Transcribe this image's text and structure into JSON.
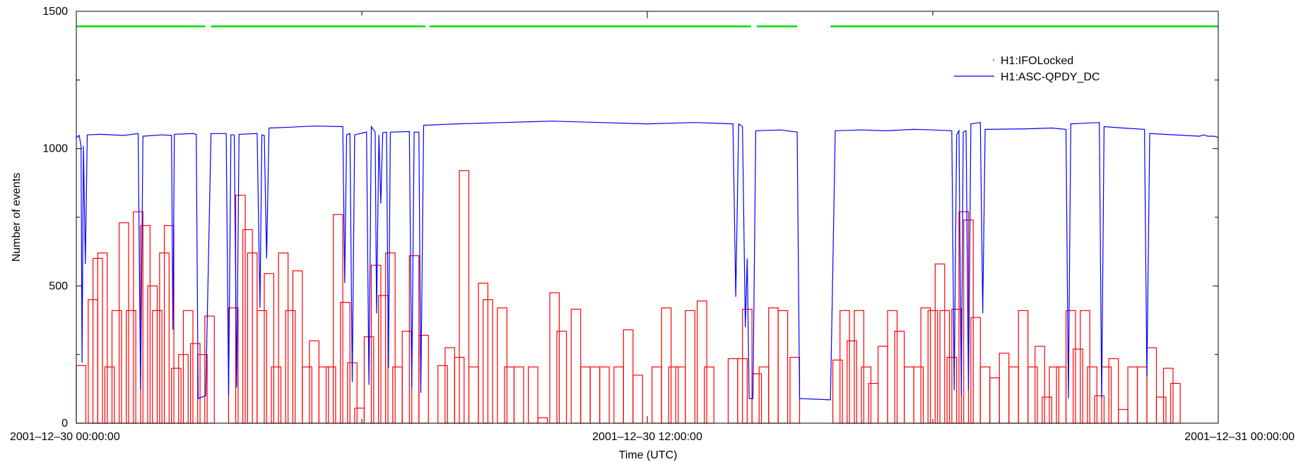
{
  "chart_data": {
    "type": "line",
    "title": "",
    "xlabel": "Time (UTC)",
    "ylabel": "Number of events",
    "x_unit": "hours since 2001-12-30 00:00:00",
    "xlim": [
      0,
      24
    ],
    "ylim": [
      0,
      1500
    ],
    "y_ticks": [
      0,
      500,
      1000,
      1500
    ],
    "x_ticks": [
      {
        "value": 0,
        "label": "2001–12–30 00:00:00"
      },
      {
        "value": 12,
        "label": "2001–12–30 12:00:00"
      },
      {
        "value": 24,
        "label": "2001–12–31 00:00:00"
      }
    ],
    "grid": false,
    "legend_position": "top-right",
    "colors": {
      "locked": "#00dd00",
      "qpdy": "#0000ff",
      "histogram": "#ff0000"
    },
    "series": [
      {
        "name": "H1:IFOLocked",
        "kind": "segments",
        "y": 1445,
        "segments": [
          [
            0.0,
            2.71
          ],
          [
            2.83,
            7.34
          ],
          [
            7.42,
            14.18
          ],
          [
            14.3,
            15.15
          ],
          [
            15.85,
            24.0
          ]
        ]
      },
      {
        "name": "H1:ASC-QPDY_DC",
        "kind": "line",
        "points": [
          [
            0.0,
            1040
          ],
          [
            0.06,
            1048
          ],
          [
            0.1,
            1010
          ],
          [
            0.12,
            220
          ],
          [
            0.15,
            1010
          ],
          [
            0.19,
            580
          ],
          [
            0.23,
            1050
          ],
          [
            0.5,
            1052
          ],
          [
            1.0,
            1048
          ],
          [
            1.3,
            1055
          ],
          [
            1.35,
            120
          ],
          [
            1.4,
            1045
          ],
          [
            1.8,
            1050
          ],
          [
            2.0,
            1048
          ],
          [
            2.03,
            340
          ],
          [
            2.06,
            1052
          ],
          [
            2.45,
            1055
          ],
          [
            2.52,
            1052
          ],
          [
            2.56,
            90
          ],
          [
            2.72,
            100
          ],
          [
            2.83,
            1055
          ],
          [
            3.15,
            1055
          ],
          [
            3.2,
            100
          ],
          [
            3.25,
            1050
          ],
          [
            3.32,
            1050
          ],
          [
            3.37,
            130
          ],
          [
            3.42,
            1052
          ],
          [
            3.8,
            1055
          ],
          [
            3.86,
            420
          ],
          [
            3.9,
            1050
          ],
          [
            3.95,
            1048
          ],
          [
            4.0,
            600
          ],
          [
            4.05,
            1075
          ],
          [
            4.5,
            1078
          ],
          [
            5.0,
            1082
          ],
          [
            5.6,
            1080
          ],
          [
            5.64,
            510
          ],
          [
            5.68,
            1050
          ],
          [
            5.75,
            1055
          ],
          [
            5.8,
            150
          ],
          [
            5.85,
            1050
          ],
          [
            6.1,
            1060
          ],
          [
            6.15,
            140
          ],
          [
            6.2,
            1080
          ],
          [
            6.28,
            1060
          ],
          [
            6.31,
            400
          ],
          [
            6.36,
            1050
          ],
          [
            6.4,
            800
          ],
          [
            6.44,
            1058
          ],
          [
            6.52,
            1060
          ],
          [
            6.56,
            200
          ],
          [
            6.6,
            1060
          ],
          [
            7.0,
            1062
          ],
          [
            7.05,
            130
          ],
          [
            7.1,
            1060
          ],
          [
            7.2,
            1060
          ],
          [
            7.24,
            110
          ],
          [
            7.3,
            1085
          ],
          [
            8.0,
            1090
          ],
          [
            9.0,
            1095
          ],
          [
            10.0,
            1100
          ],
          [
            11.0,
            1095
          ],
          [
            12.0,
            1090
          ],
          [
            13.0,
            1095
          ],
          [
            13.8,
            1090
          ],
          [
            13.86,
            460
          ],
          [
            13.92,
            1090
          ],
          [
            14.0,
            1080
          ],
          [
            14.06,
            350
          ],
          [
            14.1,
            600
          ],
          [
            14.14,
            90
          ],
          [
            14.22,
            90
          ],
          [
            14.28,
            1065
          ],
          [
            14.8,
            1068
          ],
          [
            15.15,
            1060
          ],
          [
            15.2,
            90
          ],
          [
            15.85,
            85
          ],
          [
            15.95,
            1065
          ],
          [
            16.5,
            1068
          ],
          [
            17.0,
            1065
          ],
          [
            17.6,
            1070
          ],
          [
            18.0,
            1068
          ],
          [
            18.4,
            1065
          ],
          [
            18.45,
            120
          ],
          [
            18.5,
            1050
          ],
          [
            18.55,
            1065
          ],
          [
            18.6,
            100
          ],
          [
            18.64,
            1060
          ],
          [
            18.7,
            1065
          ],
          [
            18.75,
            120
          ],
          [
            18.8,
            1090
          ],
          [
            19.0,
            1095
          ],
          [
            19.05,
            400
          ],
          [
            19.1,
            1070
          ],
          [
            20.0,
            1072
          ],
          [
            20.5,
            1075
          ],
          [
            20.8,
            1070
          ],
          [
            20.85,
            90
          ],
          [
            20.9,
            1090
          ],
          [
            21.5,
            1095
          ],
          [
            21.55,
            90
          ],
          [
            21.6,
            1080
          ],
          [
            22.0,
            1075
          ],
          [
            22.45,
            1070
          ],
          [
            22.5,
            170
          ],
          [
            22.56,
            1055
          ],
          [
            23.6,
            1045
          ],
          [
            23.7,
            1050
          ],
          [
            23.78,
            1045
          ],
          [
            23.92,
            1045
          ],
          [
            24.0,
            1040
          ]
        ]
      },
      {
        "name": "",
        "kind": "histogram",
        "bin_width_hours": 0.2,
        "bars": [
          [
            0.0,
            210
          ],
          [
            0.25,
            450
          ],
          [
            0.35,
            600
          ],
          [
            0.45,
            620
          ],
          [
            0.6,
            205
          ],
          [
            0.75,
            410
          ],
          [
            0.9,
            730
          ],
          [
            1.05,
            410
          ],
          [
            1.2,
            770
          ],
          [
            1.35,
            720
          ],
          [
            1.5,
            500
          ],
          [
            1.6,
            410
          ],
          [
            1.75,
            620
          ],
          [
            1.85,
            720
          ],
          [
            2.0,
            200
          ],
          [
            2.15,
            250
          ],
          [
            2.25,
            410
          ],
          [
            2.4,
            290
          ],
          [
            2.55,
            250
          ],
          [
            2.7,
            390
          ],
          [
            3.2,
            420
          ],
          [
            3.35,
            830
          ],
          [
            3.5,
            705
          ],
          [
            3.6,
            620
          ],
          [
            3.8,
            410
          ],
          [
            3.95,
            545
          ],
          [
            4.1,
            205
          ],
          [
            4.25,
            620
          ],
          [
            4.4,
            410
          ],
          [
            4.55,
            555
          ],
          [
            4.75,
            205
          ],
          [
            4.9,
            300
          ],
          [
            5.1,
            205
          ],
          [
            5.25,
            205
          ],
          [
            5.4,
            760
          ],
          [
            5.55,
            440
          ],
          [
            5.7,
            220
          ],
          [
            5.85,
            55
          ],
          [
            6.05,
            315
          ],
          [
            6.2,
            575
          ],
          [
            6.35,
            465
          ],
          [
            6.5,
            620
          ],
          [
            6.65,
            205
          ],
          [
            6.85,
            335
          ],
          [
            7.0,
            610
          ],
          [
            7.2,
            320
          ],
          [
            7.6,
            210
          ],
          [
            7.75,
            275
          ],
          [
            7.95,
            240
          ],
          [
            8.05,
            920
          ],
          [
            8.25,
            205
          ],
          [
            8.45,
            510
          ],
          [
            8.55,
            450
          ],
          [
            8.85,
            420
          ],
          [
            9.0,
            205
          ],
          [
            9.2,
            205
          ],
          [
            9.5,
            205
          ],
          [
            9.7,
            20
          ],
          [
            9.95,
            475
          ],
          [
            10.1,
            335
          ],
          [
            10.4,
            415
          ],
          [
            10.6,
            205
          ],
          [
            10.8,
            205
          ],
          [
            11.0,
            205
          ],
          [
            11.3,
            205
          ],
          [
            11.5,
            340
          ],
          [
            11.7,
            175
          ],
          [
            12.1,
            205
          ],
          [
            12.3,
            420
          ],
          [
            12.45,
            205
          ],
          [
            12.6,
            205
          ],
          [
            12.8,
            410
          ],
          [
            13.05,
            445
          ],
          [
            13.2,
            205
          ],
          [
            13.7,
            235
          ],
          [
            13.9,
            235
          ],
          [
            14.0,
            415
          ],
          [
            14.2,
            180
          ],
          [
            14.35,
            205
          ],
          [
            14.55,
            420
          ],
          [
            14.75,
            410
          ],
          [
            15.0,
            240
          ],
          [
            15.9,
            230
          ],
          [
            16.05,
            410
          ],
          [
            16.2,
            300
          ],
          [
            16.35,
            410
          ],
          [
            16.5,
            205
          ],
          [
            16.65,
            145
          ],
          [
            16.85,
            280
          ],
          [
            17.05,
            410
          ],
          [
            17.2,
            335
          ],
          [
            17.4,
            205
          ],
          [
            17.6,
            205
          ],
          [
            17.75,
            420
          ],
          [
            17.9,
            410
          ],
          [
            18.05,
            580
          ],
          [
            18.15,
            410
          ],
          [
            18.3,
            240
          ],
          [
            18.4,
            415
          ],
          [
            18.55,
            770
          ],
          [
            18.65,
            740
          ],
          [
            18.8,
            385
          ],
          [
            19.0,
            205
          ],
          [
            19.2,
            165
          ],
          [
            19.4,
            255
          ],
          [
            19.6,
            205
          ],
          [
            19.8,
            410
          ],
          [
            20.0,
            205
          ],
          [
            20.15,
            280
          ],
          [
            20.3,
            95
          ],
          [
            20.45,
            205
          ],
          [
            20.6,
            205
          ],
          [
            20.8,
            410
          ],
          [
            20.95,
            270
          ],
          [
            21.1,
            410
          ],
          [
            21.25,
            205
          ],
          [
            21.4,
            100
          ],
          [
            21.55,
            205
          ],
          [
            21.7,
            235
          ],
          [
            21.9,
            50
          ],
          [
            22.1,
            205
          ],
          [
            22.3,
            205
          ],
          [
            22.5,
            275
          ],
          [
            22.7,
            95
          ],
          [
            22.85,
            200
          ],
          [
            23.0,
            145
          ]
        ]
      }
    ]
  }
}
